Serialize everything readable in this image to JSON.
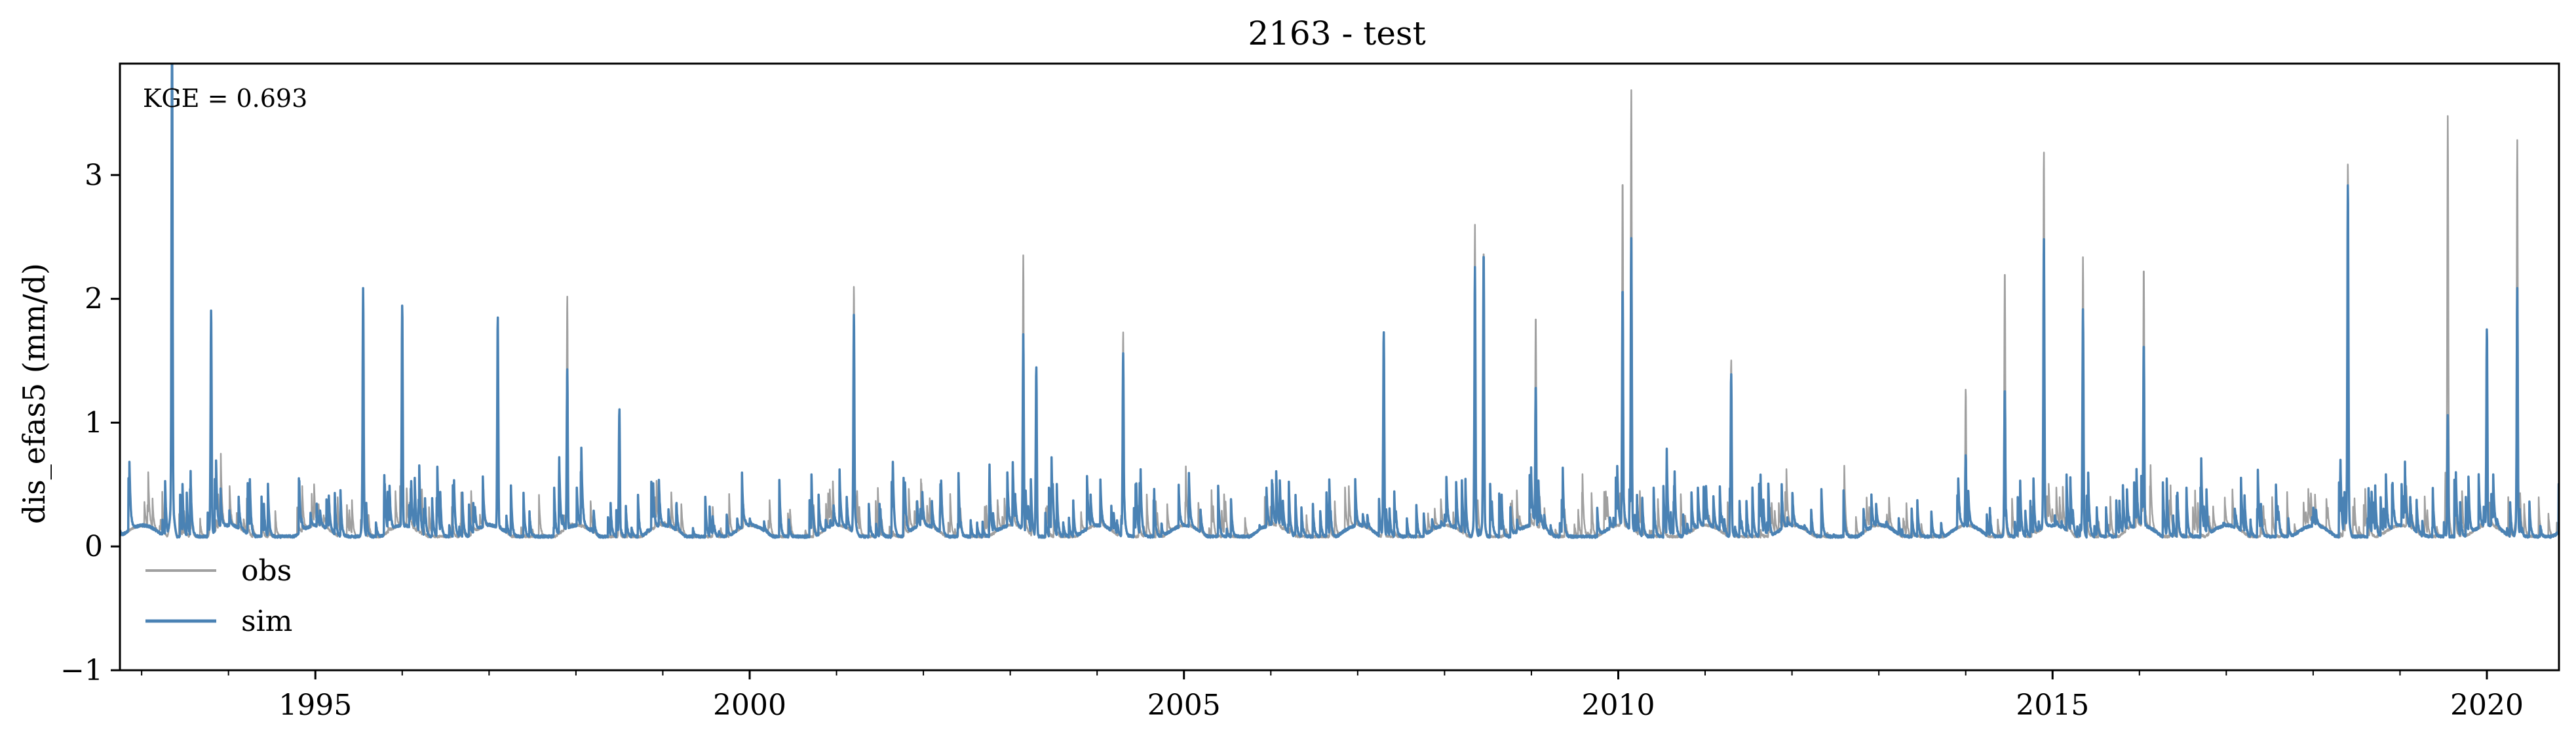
{
  "chart_data": {
    "type": "line",
    "title": "2163 - test",
    "ylabel": "dis_efas5 (mm/d)",
    "xlabel": "",
    "annotation": "KGE = 0.693",
    "xlim": [
      1992.75,
      2020.83
    ],
    "ylim": [
      -1,
      3.9
    ],
    "x_ticks": [
      1995,
      2000,
      2005,
      2010,
      2015,
      2020
    ],
    "x_tick_labels": [
      "1995",
      "2000",
      "2005",
      "2010",
      "2015",
      "2020"
    ],
    "y_ticks": [
      -1,
      0,
      1,
      2,
      3
    ],
    "y_tick_labels": [
      "−1",
      "0",
      "1",
      "2",
      "3"
    ],
    "grid": false,
    "legend_placement": "lower-left",
    "colors": {
      "obs": "#a0a0a0",
      "sim": "#4a82b4"
    },
    "baseline": 0.15,
    "series": [
      {
        "name": "obs",
        "peaks": [
          [
            1993.35,
            3.3
          ],
          [
            1993.8,
            1.7
          ],
          [
            1995.55,
            1.85
          ],
          [
            1996.0,
            1.8
          ],
          [
            1997.1,
            1.7
          ],
          [
            1997.9,
            1.92
          ],
          [
            1998.5,
            1.0
          ],
          [
            2001.2,
            1.95
          ],
          [
            2003.15,
            2.18
          ],
          [
            2003.3,
            1.3
          ],
          [
            2004.3,
            1.6
          ],
          [
            2007.3,
            1.55
          ],
          [
            2008.35,
            2.35
          ],
          [
            2008.45,
            2.2
          ],
          [
            2009.05,
            1.8
          ],
          [
            2010.05,
            2.78
          ],
          [
            2010.15,
            3.35
          ],
          [
            2011.3,
            1.4
          ],
          [
            2014.0,
            1.27
          ],
          [
            2014.45,
            2.05
          ],
          [
            2014.9,
            2.95
          ],
          [
            2015.35,
            2.12
          ],
          [
            2016.05,
            2.15
          ],
          [
            2018.4,
            2.8
          ],
          [
            2019.55,
            3.12
          ],
          [
            2020.0,
            1.7
          ],
          [
            2020.35,
            2.95
          ]
        ]
      },
      {
        "name": "sim",
        "peaks": [
          [
            1993.35,
            3.75
          ],
          [
            1993.8,
            1.78
          ],
          [
            1995.55,
            1.9
          ],
          [
            1996.0,
            1.87
          ],
          [
            1997.1,
            1.77
          ],
          [
            1997.9,
            1.4
          ],
          [
            1998.5,
            1.05
          ],
          [
            2001.2,
            1.75
          ],
          [
            2003.15,
            1.62
          ],
          [
            2003.3,
            1.35
          ],
          [
            2004.3,
            1.45
          ],
          [
            2007.3,
            1.6
          ],
          [
            2008.35,
            2.05
          ],
          [
            2008.45,
            2.18
          ],
          [
            2009.05,
            1.3
          ],
          [
            2010.05,
            2.0
          ],
          [
            2010.15,
            2.3
          ],
          [
            2011.3,
            1.3
          ],
          [
            2014.0,
            0.8
          ],
          [
            2014.45,
            1.2
          ],
          [
            2014.9,
            2.33
          ],
          [
            2015.35,
            1.75
          ],
          [
            2016.05,
            1.6
          ],
          [
            2018.4,
            2.65
          ],
          [
            2019.55,
            1.0
          ],
          [
            2020.0,
            1.7
          ],
          [
            2020.35,
            1.9
          ]
        ]
      }
    ]
  }
}
